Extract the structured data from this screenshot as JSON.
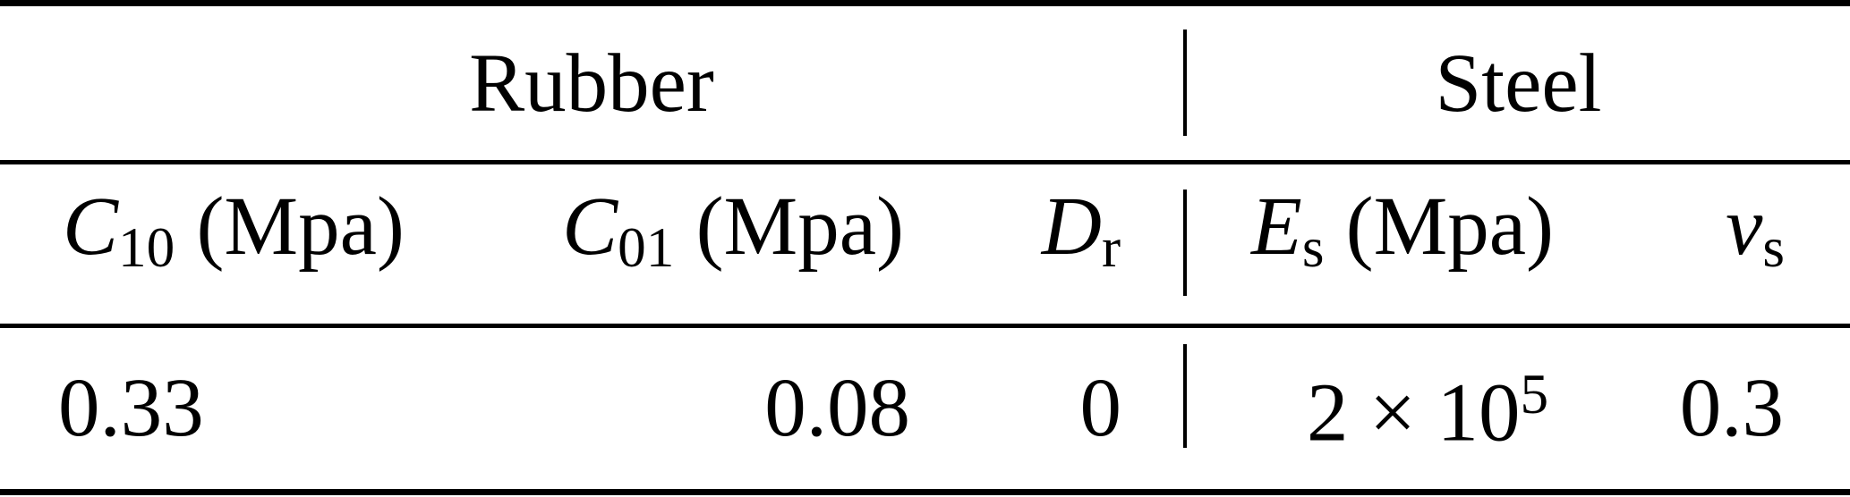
{
  "table": {
    "groups": {
      "rubber": "Rubber",
      "steel": "Steel"
    },
    "headers": {
      "c10": {
        "base": "C",
        "sub": "10",
        "unit": "(Mpa)"
      },
      "c01": {
        "base": "C",
        "sub": "01",
        "unit": "(Mpa)"
      },
      "dr": {
        "base": "D",
        "sub": "r",
        "unit": ""
      },
      "es": {
        "base": "E",
        "sub": "s",
        "unit": "(Mpa)"
      },
      "vs": {
        "base": "v",
        "sub": "s",
        "unit": ""
      }
    },
    "row": {
      "c10": "0.33",
      "c01": "0.08",
      "dr": "0",
      "es": {
        "mantissa": "2 × 10",
        "exponent": "5"
      },
      "vs": "0.3"
    },
    "colors": {
      "text": "#000000",
      "background": "#ffffff",
      "rule": "#000000"
    }
  },
  "chart_data": {
    "type": "table",
    "column_groups": [
      {
        "label": "Rubber",
        "columns": [
          "C10 (Mpa)",
          "C01 (Mpa)",
          "Dr"
        ]
      },
      {
        "label": "Steel",
        "columns": [
          "Es (Mpa)",
          "vs"
        ]
      }
    ],
    "columns": [
      "C10 (Mpa)",
      "C01 (Mpa)",
      "Dr",
      "Es (Mpa)",
      "vs"
    ],
    "rows": [
      [
        "0.33",
        "0.08",
        "0",
        "2 × 10^5",
        "0.3"
      ]
    ]
  }
}
